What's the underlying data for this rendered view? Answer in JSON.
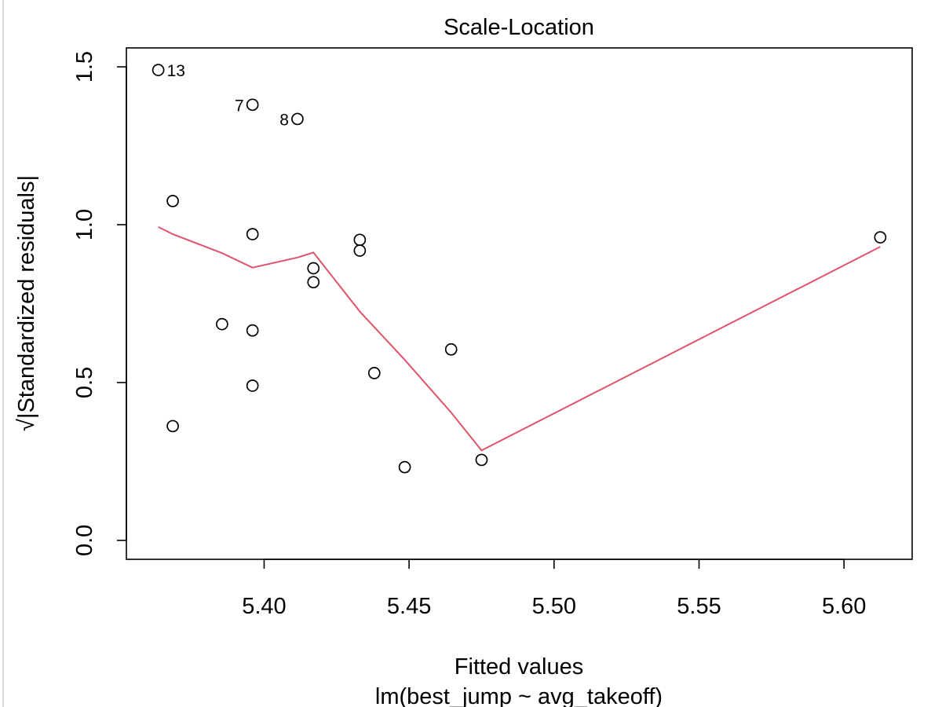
{
  "chart_data": {
    "type": "scatter",
    "title": "Scale-Location",
    "xlabel": "Fitted values",
    "sublabel": "lm(best_jump ~ avg_takeoff)",
    "ylabel": "√|Standardized residuals|",
    "xlim": [
      5.3525,
      5.6235
    ],
    "ylim": [
      -0.06,
      1.56
    ],
    "x_ticks": [
      {
        "value": 5.4,
        "label": "5.40"
      },
      {
        "value": 5.45,
        "label": "5.45"
      },
      {
        "value": 5.5,
        "label": "5.50"
      },
      {
        "value": 5.55,
        "label": "5.55"
      },
      {
        "value": 5.6,
        "label": "5.60"
      }
    ],
    "y_ticks": [
      {
        "value": 0.0,
        "label": "0.0"
      },
      {
        "value": 0.5,
        "label": "0.5"
      },
      {
        "value": 1.0,
        "label": "1.0"
      },
      {
        "value": 1.5,
        "label": "1.5"
      }
    ],
    "points": [
      {
        "x": 5.3635,
        "y": 1.49,
        "label": "13",
        "label_side": "right"
      },
      {
        "x": 5.396,
        "y": 1.38,
        "label": "7",
        "label_side": "left"
      },
      {
        "x": 5.4115,
        "y": 1.335,
        "label": "8",
        "label_side": "left"
      },
      {
        "x": 5.3685,
        "y": 1.075
      },
      {
        "x": 5.396,
        "y": 0.97
      },
      {
        "x": 5.433,
        "y": 0.952
      },
      {
        "x": 5.433,
        "y": 0.918
      },
      {
        "x": 5.417,
        "y": 0.862
      },
      {
        "x": 5.417,
        "y": 0.818
      },
      {
        "x": 5.3855,
        "y": 0.685
      },
      {
        "x": 5.396,
        "y": 0.665
      },
      {
        "x": 5.4645,
        "y": 0.605
      },
      {
        "x": 5.438,
        "y": 0.53
      },
      {
        "x": 5.396,
        "y": 0.49
      },
      {
        "x": 5.3685,
        "y": 0.362
      },
      {
        "x": 5.475,
        "y": 0.255
      },
      {
        "x": 5.4485,
        "y": 0.232
      },
      {
        "x": 5.6125,
        "y": 0.96
      }
    ],
    "smooth_line": {
      "color": "#DF536B",
      "points": [
        [
          5.3635,
          0.993
        ],
        [
          5.3685,
          0.97
        ],
        [
          5.3855,
          0.91
        ],
        [
          5.396,
          0.864
        ],
        [
          5.4115,
          0.896
        ],
        [
          5.417,
          0.912
        ],
        [
          5.433,
          0.725
        ],
        [
          5.4485,
          0.572
        ],
        [
          5.4645,
          0.405
        ],
        [
          5.475,
          0.285
        ],
        [
          5.6125,
          0.93
        ]
      ]
    }
  }
}
